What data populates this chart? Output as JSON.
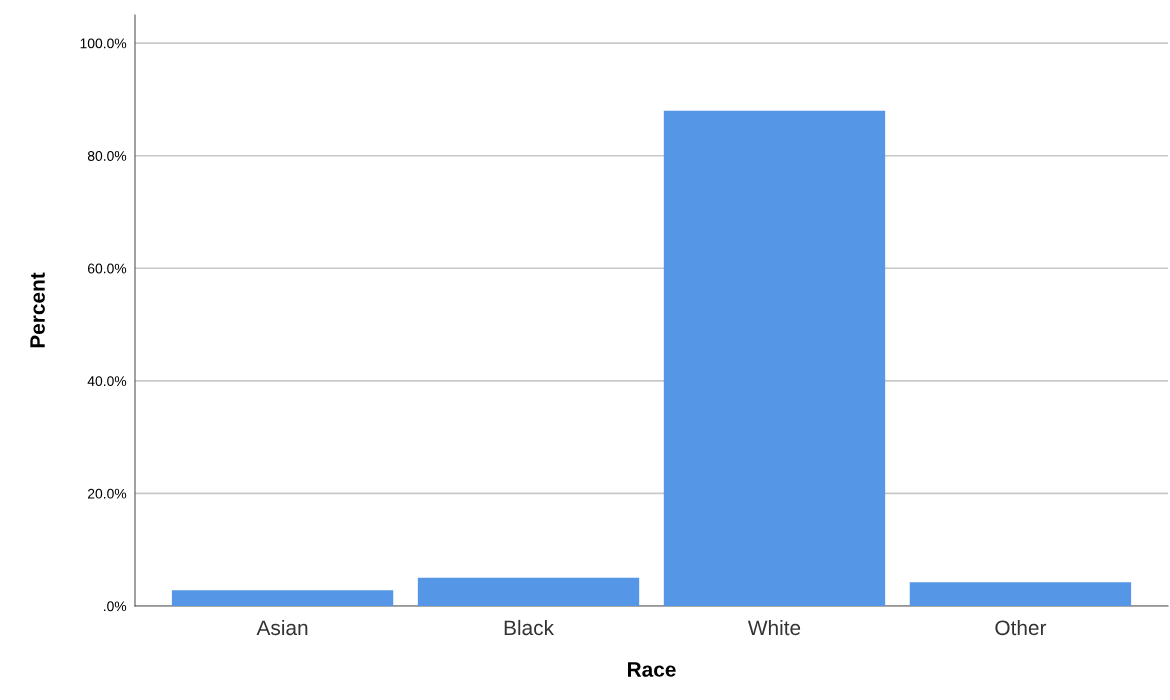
{
  "chart_data": {
    "type": "bar",
    "xlabel": "Race",
    "ylabel": "Percent",
    "categories": [
      "Asian",
      "Black",
      "White",
      "Other"
    ],
    "values": [
      2.8,
      5.0,
      88.0,
      4.2
    ],
    "color": "#5596e6",
    "ylim": [
      0,
      105
    ],
    "yticks": [
      {
        "value": 0,
        "label": ".0%"
      },
      {
        "value": 20,
        "label": "20.0%"
      },
      {
        "value": 40,
        "label": "40.0%"
      },
      {
        "value": 60,
        "label": "60.0%"
      },
      {
        "value": 80,
        "label": "80.0%"
      },
      {
        "value": 100,
        "label": "100.0%"
      }
    ],
    "grid": "y"
  }
}
